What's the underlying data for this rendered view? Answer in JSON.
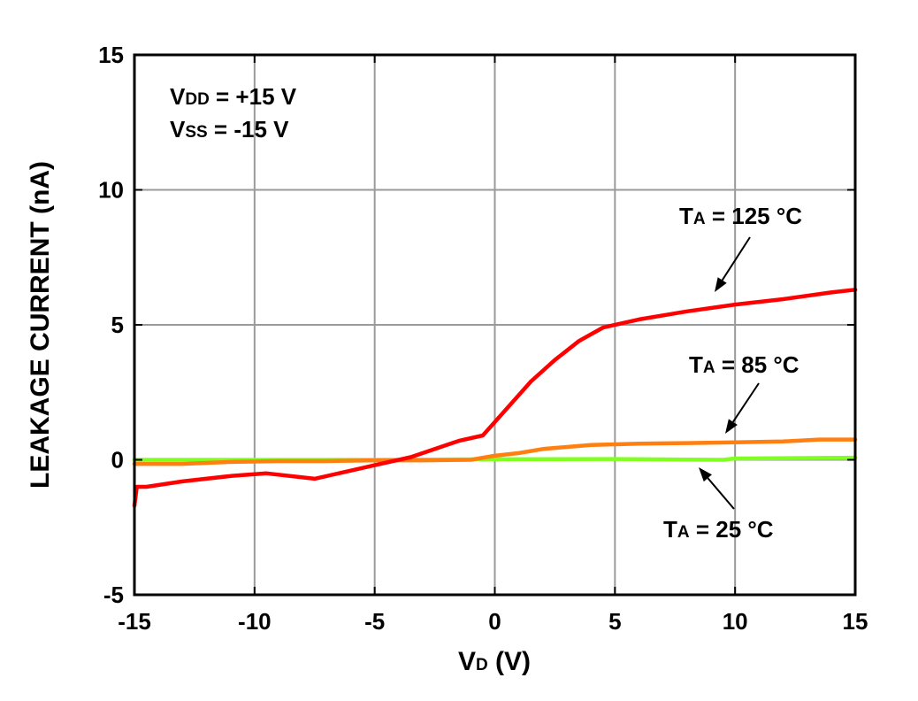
{
  "chart_data": {
    "type": "line",
    "xlabel": {
      "main": "V",
      "sub": "D",
      "rest": " (V)"
    },
    "ylabel": "LEAKAGE CURRENT (nA)",
    "xlim": [
      -15,
      15
    ],
    "ylim": [
      -5,
      15
    ],
    "xticks": [
      -15,
      -10,
      -5,
      0,
      5,
      10,
      15
    ],
    "yticks": [
      -5,
      0,
      5,
      10,
      15
    ],
    "xtick_labels": [
      "-15",
      "-10",
      "-5",
      "0",
      "5",
      "10",
      "15"
    ],
    "ytick_labels": [
      "-5",
      "0",
      "5",
      "10",
      "15"
    ],
    "grid": true,
    "conditions": [
      {
        "main": "V",
        "sub": "DD",
        "rest": " = +15 V"
      },
      {
        "main": "V",
        "sub": "SS",
        "rest": " = -15 V"
      }
    ],
    "series": [
      {
        "color": "#ff0000",
        "label": {
          "main": "T",
          "sub": "A",
          "rest": " = 125 °C"
        },
        "x": [
          -15,
          -14.9,
          -14.5,
          -13,
          -11,
          -9.5,
          -7.5,
          -6.5,
          -5,
          -3.5,
          -1.5,
          -0.5,
          0.3,
          1.5,
          2.5,
          3.5,
          4.5,
          6,
          8,
          10,
          12,
          14,
          15
        ],
        "y": [
          -1.7,
          -1.0,
          -1.0,
          -0.8,
          -0.6,
          -0.5,
          -0.7,
          -0.5,
          -0.2,
          0.1,
          0.7,
          0.9,
          1.7,
          2.9,
          3.7,
          4.4,
          4.9,
          5.2,
          5.5,
          5.75,
          5.95,
          6.2,
          6.3
        ]
      },
      {
        "color": "#ff7f10",
        "label": {
          "main": "T",
          "sub": "A",
          "rest": " = 85 °C"
        },
        "x": [
          -15,
          -13,
          -11,
          -9,
          -7,
          -5,
          -3,
          -1,
          0,
          1,
          2,
          4,
          6,
          8,
          10,
          12,
          13.5,
          15
        ],
        "y": [
          -0.15,
          -0.15,
          -0.08,
          -0.05,
          -0.05,
          -0.02,
          -0.02,
          0.0,
          0.15,
          0.25,
          0.4,
          0.55,
          0.6,
          0.62,
          0.65,
          0.68,
          0.75,
          0.75
        ]
      },
      {
        "color": "#80ff20",
        "label": {
          "main": "T",
          "sub": "A",
          "rest": " = 25 °C"
        },
        "x": [
          -15,
          -10,
          -5,
          0,
          5,
          9.5,
          10,
          15
        ],
        "y": [
          0.0,
          0.0,
          0.0,
          0.02,
          0.03,
          0.0,
          0.05,
          0.08
        ]
      }
    ]
  }
}
